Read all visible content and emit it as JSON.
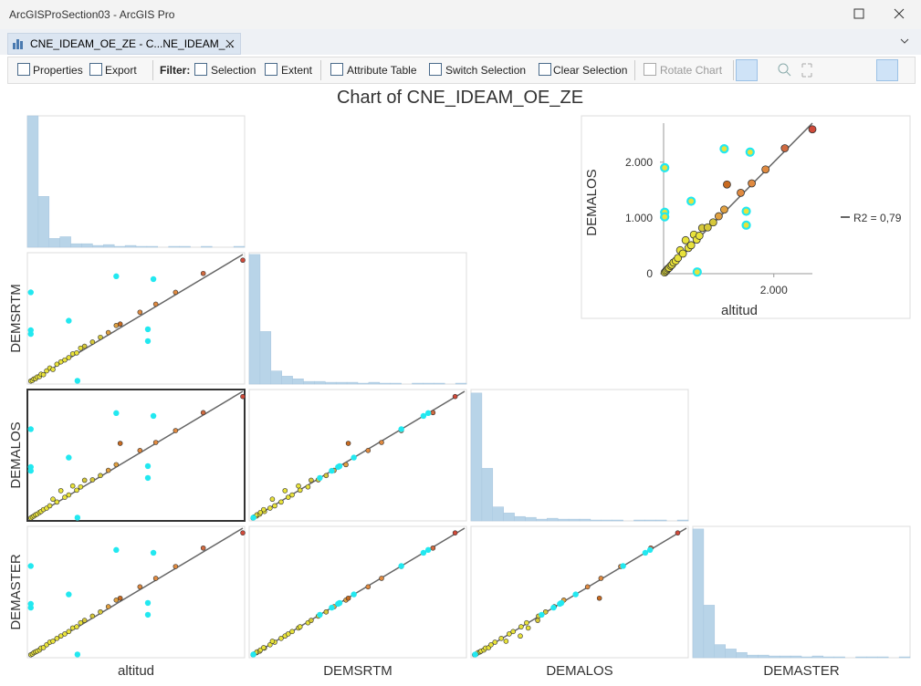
{
  "window": {
    "title": "ArcGISProSection03 - ArcGIS Pro"
  },
  "tab": {
    "title": "CNE_IDEAM_OE_ZE  - C...NE_IDEAM_..."
  },
  "toolbar": {
    "properties": "Properties",
    "export": "Export",
    "filter": "Filter:",
    "selection": "Selection",
    "extent": "Extent",
    "attribute_table": "Attribute Table",
    "switch_selection": "Switch Selection",
    "clear_selection": "Clear Selection",
    "rotate_chart": "Rotate Chart"
  },
  "chart_data": {
    "type": "scatter-matrix",
    "title": "Chart of CNE_IDEAM_OE_ZE",
    "lim": [
      0,
      2700
    ],
    "variables": [
      {
        "name": "altitud",
        "values": [
          20,
          40,
          60,
          80,
          100,
          130,
          150,
          180,
          220,
          260,
          300,
          350,
          400,
          450,
          500,
          550,
          600,
          650,
          700,
          800,
          900,
          1000,
          1100,
          1150,
          1400,
          1600,
          1850,
          2200,
          2700,
          20,
          20,
          20,
          500,
          1100,
          1570,
          1500,
          1500,
          610
        ]
      },
      {
        "name": "DEMSRTM",
        "values": [
          25,
          38,
          70,
          75,
          110,
          120,
          170,
          160,
          240,
          300,
          270,
          380,
          430,
          470,
          520,
          600,
          620,
          720,
          760,
          850,
          950,
          1050,
          1200,
          1230,
          1480,
          1650,
          1900,
          2300,
          2580,
          1900,
          1100,
          1020,
          1300,
          2240,
          2180,
          1120,
          870,
          30
        ]
      },
      {
        "name": "DEMALOS",
        "values": [
          22,
          45,
          65,
          90,
          105,
          140,
          160,
          200,
          230,
          280,
          420,
          360,
          600,
          460,
          510,
          700,
          610,
          680,
          820,
          830,
          920,
          1030,
          1150,
          1600,
          1450,
          1620,
          1870,
          2250,
          2590,
          1900,
          1100,
          1020,
          1300,
          2240,
          2180,
          1120,
          870,
          30
        ]
      },
      {
        "name": "DEMASTER",
        "values": [
          24,
          41,
          68,
          85,
          102,
          125,
          165,
          175,
          235,
          290,
          310,
          370,
          420,
          465,
          515,
          590,
          615,
          700,
          750,
          840,
          930,
          1040,
          1180,
          1220,
          1460,
          1640,
          1890,
          2280,
          2600,
          1900,
          1100,
          1020,
          1300,
          2240,
          2180,
          1120,
          870,
          30
        ]
      }
    ],
    "selected": [
      false,
      false,
      false,
      false,
      false,
      false,
      false,
      false,
      false,
      false,
      false,
      false,
      false,
      false,
      false,
      false,
      false,
      false,
      false,
      false,
      false,
      false,
      false,
      false,
      false,
      false,
      false,
      false,
      false,
      true,
      true,
      true,
      true,
      true,
      true,
      true,
      true,
      true
    ],
    "point_colors": [
      "#e8e23a",
      "#e8e23a",
      "#e8e23a",
      "#e8e23a",
      "#e8e23a",
      "#e8e23a",
      "#e8e23a",
      "#e8e23a",
      "#e8e23a",
      "#e8e23a",
      "#e8e23a",
      "#e8e23a",
      "#e8e23a",
      "#e8e23a",
      "#e8e23a",
      "#e8e23a",
      "#e8e23a",
      "#e8e23a",
      "#d6c83a",
      "#d6c83a",
      "#d6c83a",
      "#e0a040",
      "#e0a040",
      "#c86a20",
      "#e08a40",
      "#e08a40",
      "#e08a40",
      "#d06a40",
      "#d04a3a",
      "#e8e23a",
      "#e8e23a",
      "#e8e23a",
      "#e8e23a",
      "#e8e23a",
      "#e8e23a",
      "#e8e23a",
      "#e8e23a",
      "#e8e23a"
    ],
    "selected_color": "#22e8f0",
    "bins": [
      0,
      135,
      270,
      405,
      540,
      675,
      810,
      945,
      1080,
      1215,
      1350,
      1485,
      1620,
      1755,
      1890,
      2025,
      2160,
      2295,
      2430,
      2565,
      2700
    ],
    "histograms": [
      {
        "counts": [
          150,
          58,
          10,
          12,
          4,
          4,
          2,
          3,
          1,
          2,
          1,
          1,
          0,
          1,
          1,
          0,
          1,
          0,
          0,
          1
        ]
      },
      {
        "counts": [
          148,
          60,
          15,
          9,
          6,
          3,
          3,
          2,
          2,
          2,
          1,
          2,
          1,
          1,
          0,
          1,
          1,
          1,
          0,
          1
        ]
      },
      {
        "counts": [
          146,
          60,
          16,
          9,
          5,
          4,
          2,
          3,
          2,
          2,
          2,
          1,
          1,
          1,
          0,
          1,
          1,
          1,
          0,
          1
        ]
      },
      {
        "counts": [
          147,
          60,
          15,
          10,
          6,
          3,
          3,
          2,
          2,
          2,
          1,
          2,
          1,
          1,
          0,
          1,
          1,
          1,
          0,
          1
        ]
      }
    ],
    "hist_ylim": [
      0,
      150
    ],
    "hist_color": "#b8d4e8",
    "preview": {
      "x_label": "altitud",
      "y_label": "DEMALOS",
      "xlim": [
        0,
        2700
      ],
      "ylim": [
        0,
        2700
      ],
      "xticks": [
        {
          "value": 2000,
          "label": "2.000"
        }
      ],
      "yticks": [
        0,
        {
          "value": 1000,
          "label": "1.000"
        },
        {
          "value": 2000,
          "label": "2.000"
        }
      ],
      "legend": "R2 = 0,79"
    }
  }
}
